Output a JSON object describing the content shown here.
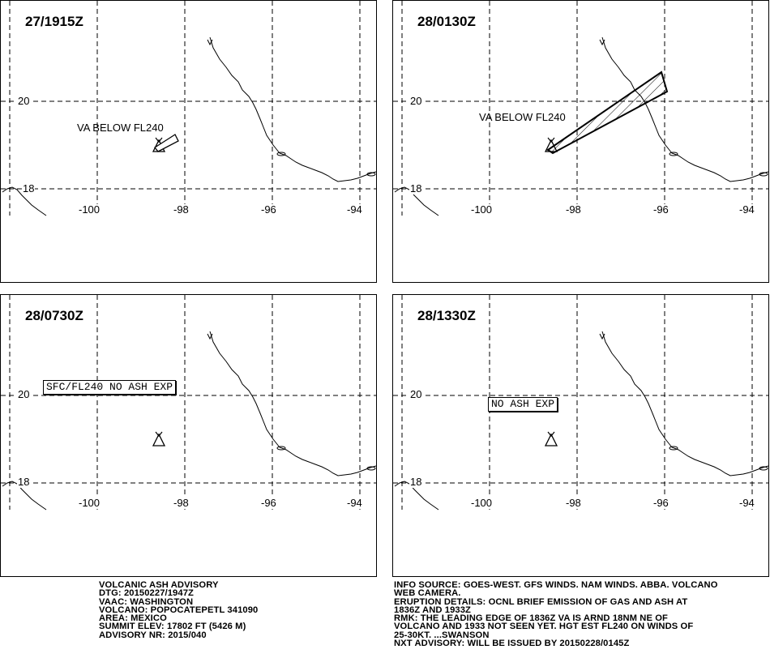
{
  "panels": [
    {
      "title": "27/1915Z",
      "note": "VA BELOW FL240",
      "boxed_note": ""
    },
    {
      "title": "28/0130Z",
      "note": "VA BELOW FL240",
      "boxed_note": ""
    },
    {
      "title": "28/0730Z",
      "note": "",
      "boxed_note": "SFC/FL240 NO ASH EXP"
    },
    {
      "title": "28/1330Z",
      "note": "",
      "boxed_note": "NO ASH EXP"
    }
  ],
  "grid": {
    "lat_labels": [
      "20",
      "18"
    ],
    "lon_labels": [
      "-100",
      "-98",
      "-96",
      "-94"
    ]
  },
  "advisory_left": [
    "VOLCANIC ASH ADVISORY",
    "DTG: 20150227/1947Z",
    "VAAC: WASHINGTON",
    "VOLCANO: POPOCATEPETL 341090",
    "AREA: MEXICO",
    "SUMMIT ELEV: 17802 FT (5426 M)",
    "ADVISORY NR: 2015/040"
  ],
  "advisory_right": [
    "INFO SOURCE: GOES-WEST. GFS WINDS. NAM WINDS. ABBA. VOLCANO",
    "WEB CAMERA.",
    "ERUPTION DETAILS: OCNL BRIEF EMISSION OF GAS AND ASH AT",
    "1836Z AND 1933Z",
    "RMK: THE LEADING EDGE OF 1836Z VA IS ARND 18NM NE OF",
    "VOLCANO AND 1933 NOT SEEN YET. HGT EST FL240 ON WINDS OF",
    "25-30KT. ...SWANSON",
    "NXT ADVISORY: WILL BE ISSUED BY 20150228/0145Z"
  ]
}
